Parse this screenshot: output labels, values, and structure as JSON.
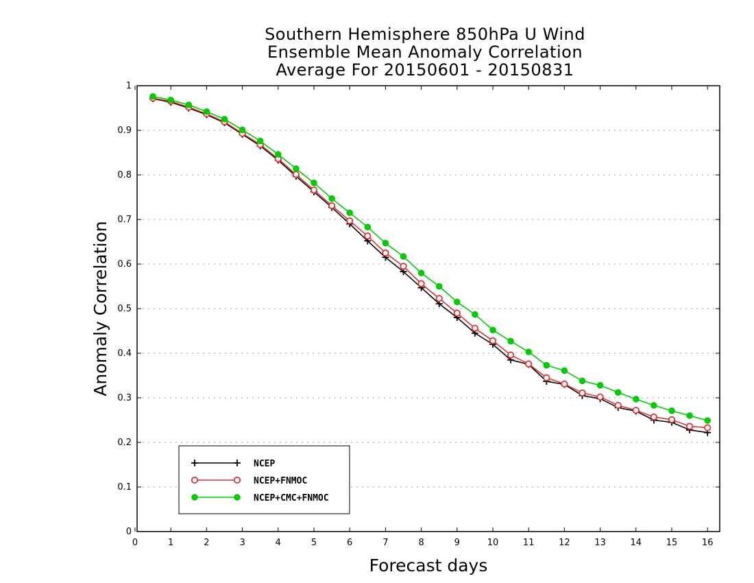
{
  "chart_data": {
    "type": "line",
    "title": [
      "Southern Hemisphere 850hPa U Wind",
      "Ensemble Mean Anomaly Correlation",
      "Average For 20150601 - 20150831"
    ],
    "xlabel": "Forecast days",
    "ylabel": "Anomaly Correlation",
    "xlim": [
      0,
      16.3
    ],
    "ylim": [
      0,
      1
    ],
    "xticks": [
      "0",
      "1",
      "2",
      "3",
      "4",
      "5",
      "6",
      "7",
      "8",
      "9",
      "10",
      "11",
      "12",
      "13",
      "14",
      "15",
      "16"
    ],
    "yticks": [
      "0",
      "0.1",
      "0.2",
      "0.3",
      "0.4",
      "0.5",
      "0.6",
      "0.7",
      "0.8",
      "0.9",
      "1"
    ],
    "grid": "horizontal dotted",
    "legend_position": "bottom-left",
    "x": [
      0.5,
      1,
      1.5,
      2,
      2.5,
      3,
      3.5,
      4,
      4.5,
      5,
      5.5,
      6,
      6.5,
      7,
      7.5,
      8,
      8.5,
      9,
      9.5,
      10,
      10.5,
      11,
      11.5,
      12,
      12.5,
      13,
      13.5,
      14,
      14.5,
      15,
      15.5,
      16
    ],
    "series": [
      {
        "name": "NCEP",
        "color": "#000000",
        "marker": "plus",
        "values": [
          0.971,
          0.963,
          0.95,
          0.935,
          0.917,
          0.891,
          0.865,
          0.833,
          0.797,
          0.762,
          0.727,
          0.69,
          0.652,
          0.615,
          0.583,
          0.547,
          0.511,
          0.48,
          0.445,
          0.42,
          0.385,
          0.375,
          0.337,
          0.33,
          0.305,
          0.298,
          0.278,
          0.27,
          0.25,
          0.245,
          0.228,
          0.222
        ]
      },
      {
        "name": "NCEP+FNMOC",
        "color": "#e03030",
        "marker": "open-circle",
        "values": [
          0.972,
          0.965,
          0.952,
          0.937,
          0.919,
          0.893,
          0.868,
          0.836,
          0.801,
          0.766,
          0.731,
          0.697,
          0.663,
          0.625,
          0.595,
          0.556,
          0.523,
          0.49,
          0.456,
          0.428,
          0.396,
          0.376,
          0.345,
          0.331,
          0.311,
          0.302,
          0.283,
          0.272,
          0.257,
          0.251,
          0.236,
          0.233
        ]
      },
      {
        "name": "NCEP+CMC+FNMOC",
        "color": "#00cc00",
        "marker": "filled-circle",
        "values": [
          0.976,
          0.968,
          0.957,
          0.942,
          0.925,
          0.901,
          0.876,
          0.846,
          0.814,
          0.782,
          0.747,
          0.715,
          0.683,
          0.647,
          0.617,
          0.58,
          0.55,
          0.515,
          0.487,
          0.452,
          0.427,
          0.403,
          0.373,
          0.361,
          0.338,
          0.328,
          0.312,
          0.297,
          0.283,
          0.271,
          0.26,
          0.249
        ]
      }
    ]
  }
}
